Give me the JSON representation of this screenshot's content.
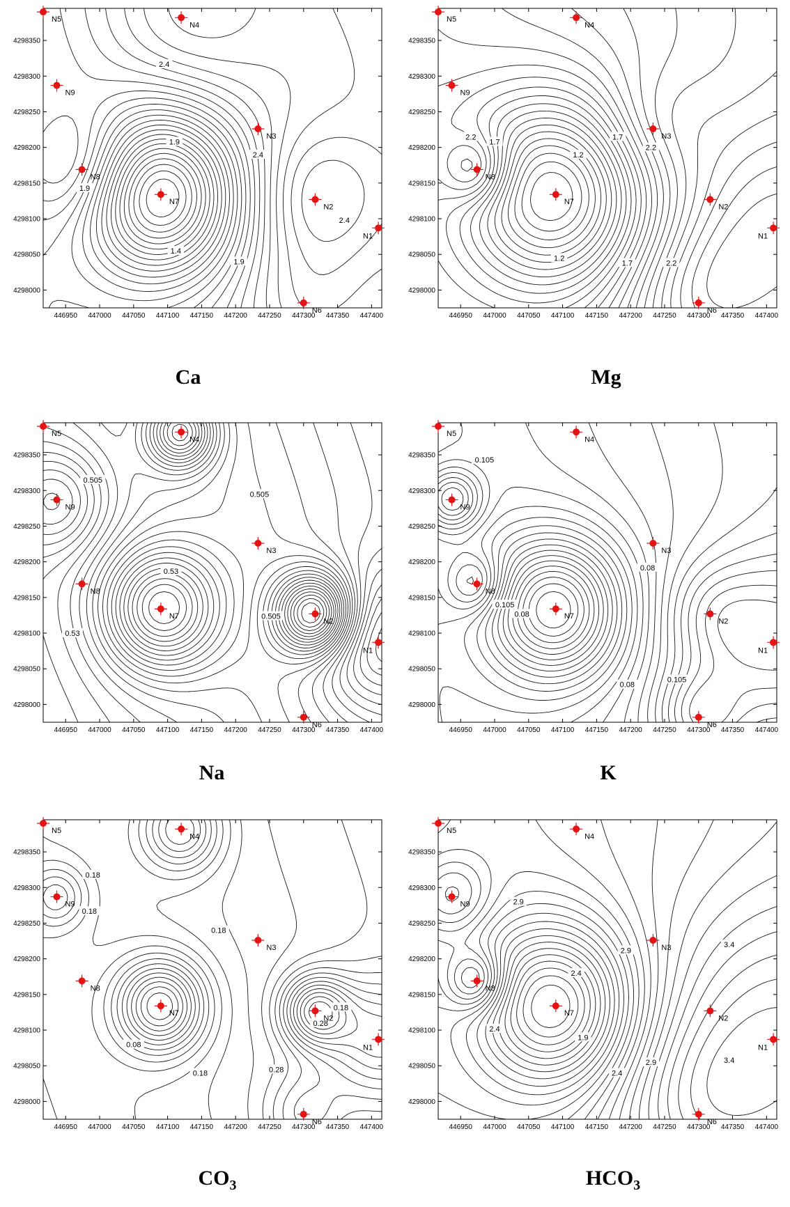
{
  "figure": {
    "x_ticks": [
      "446950",
      "447000",
      "447050",
      "447100",
      "447150",
      "447200",
      "447250",
      "447300",
      "447350",
      "447400"
    ],
    "y_ticks": [
      "4298000",
      "4298050",
      "4298100",
      "4298150",
      "4298200",
      "4298250",
      "4298300",
      "4298350"
    ],
    "well_color": "#e41414",
    "line_color": "#1a1a1a"
  },
  "wells": [
    {
      "id": "N1",
      "x": 447410,
      "y": 4298087
    },
    {
      "id": "N2",
      "x": 447317,
      "y": 4298127
    },
    {
      "id": "N3",
      "x": 447233,
      "y": 4298226
    },
    {
      "id": "N4",
      "x": 447120,
      "y": 4298382
    },
    {
      "id": "N5",
      "x": 446917,
      "y": 4298390
    },
    {
      "id": "N6",
      "x": 447300,
      "y": 4297982
    },
    {
      "id": "N7",
      "x": 447090,
      "y": 4298134
    },
    {
      "id": "N8",
      "x": 446974,
      "y": 4298169
    },
    {
      "id": "N9",
      "x": 446937,
      "y": 4298287
    }
  ],
  "panels": [
    {
      "name": "ca",
      "caption_main": "Ca",
      "caption_sub": "",
      "contour_labels": [
        {
          "text": "2.4",
          "x": 447095,
          "y": 4298317
        },
        {
          "text": "1.9",
          "x": 447110,
          "y": 4298208
        },
        {
          "text": "2.4",
          "x": 447233,
          "y": 4298190
        },
        {
          "text": "1.9",
          "x": 446978,
          "y": 4298143
        },
        {
          "text": "2.4",
          "x": 447360,
          "y": 4298098
        },
        {
          "text": "1.4",
          "x": 447112,
          "y": 4298055
        },
        {
          "text": "1.9",
          "x": 447205,
          "y": 4298040
        }
      ]
    },
    {
      "name": "mg",
      "caption_main": "Mg",
      "caption_sub": "",
      "contour_labels": [
        {
          "text": "2.2",
          "x": 446965,
          "y": 4298215
        },
        {
          "text": "1.7",
          "x": 447000,
          "y": 4298208
        },
        {
          "text": "1.2",
          "x": 447123,
          "y": 4298190
        },
        {
          "text": "1.7",
          "x": 447181,
          "y": 4298215
        },
        {
          "text": "2.2",
          "x": 447230,
          "y": 4298200
        },
        {
          "text": "1.2",
          "x": 447095,
          "y": 4298045
        },
        {
          "text": "1.7",
          "x": 447195,
          "y": 4298038
        },
        {
          "text": "2.2",
          "x": 447260,
          "y": 4298038
        }
      ]
    },
    {
      "name": "na",
      "caption_main": "Na",
      "caption_sub": "",
      "contour_labels": [
        {
          "text": "0.505",
          "x": 446990,
          "y": 4298315
        },
        {
          "text": "0.505",
          "x": 447235,
          "y": 4298295
        },
        {
          "text": "0.53",
          "x": 447105,
          "y": 4298187
        },
        {
          "text": "0.53",
          "x": 446960,
          "y": 4298100
        },
        {
          "text": "0.505",
          "x": 447252,
          "y": 4298124
        }
      ]
    },
    {
      "name": "k",
      "caption_main": "K",
      "caption_sub": "",
      "contour_labels": [
        {
          "text": "0.105",
          "x": 446985,
          "y": 4298343
        },
        {
          "text": "0.08",
          "x": 447225,
          "y": 4298192
        },
        {
          "text": "0.105",
          "x": 447015,
          "y": 4298140
        },
        {
          "text": "0.08",
          "x": 447040,
          "y": 4298127
        },
        {
          "text": "0.08",
          "x": 447195,
          "y": 4298028
        },
        {
          "text": "0.105",
          "x": 447268,
          "y": 4298035
        }
      ]
    },
    {
      "name": "co3",
      "caption_main": "CO",
      "caption_sub": "3",
      "contour_labels": [
        {
          "text": "0.18",
          "x": 446990,
          "y": 4298318
        },
        {
          "text": "0.18",
          "x": 446985,
          "y": 4298267
        },
        {
          "text": "0.18",
          "x": 447175,
          "y": 4298240
        },
        {
          "text": "0.28",
          "x": 447325,
          "y": 4298110
        },
        {
          "text": "0.18",
          "x": 447355,
          "y": 4298132
        },
        {
          "text": "0.08",
          "x": 447050,
          "y": 4298080
        },
        {
          "text": "0.18",
          "x": 447148,
          "y": 4298040
        },
        {
          "text": "0.28",
          "x": 447260,
          "y": 4298045
        }
      ]
    },
    {
      "name": "hco3",
      "caption_main": "HCO",
      "caption_sub": "3",
      "contour_labels": [
        {
          "text": "2.9",
          "x": 447035,
          "y": 4298280
        },
        {
          "text": "2.9",
          "x": 447193,
          "y": 4298212
        },
        {
          "text": "3.4",
          "x": 447345,
          "y": 4298220
        },
        {
          "text": "2.4",
          "x": 447120,
          "y": 4298180
        },
        {
          "text": "2.4",
          "x": 447000,
          "y": 4298102
        },
        {
          "text": "1.9",
          "x": 447130,
          "y": 4298090
        },
        {
          "text": "2.4",
          "x": 447180,
          "y": 4298040
        },
        {
          "text": "2.9",
          "x": 447230,
          "y": 4298055
        },
        {
          "text": "3.4",
          "x": 447345,
          "y": 4298058
        }
      ]
    }
  ]
}
